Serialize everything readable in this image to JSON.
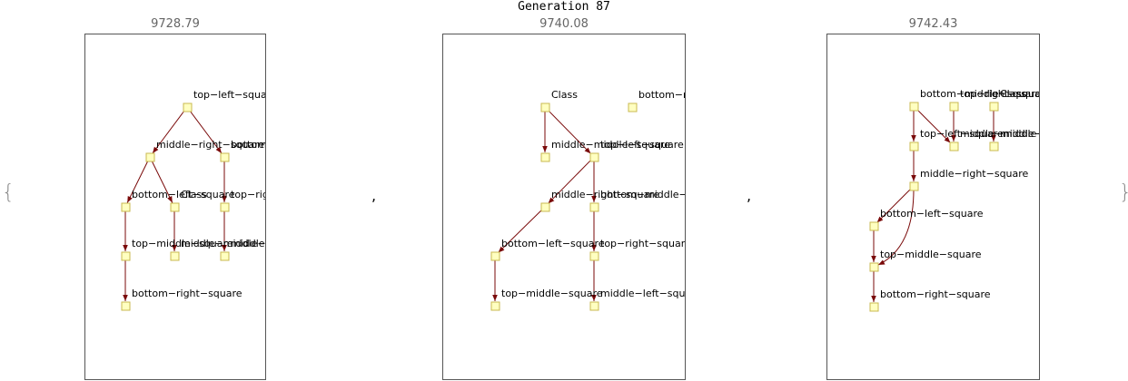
{
  "title": "Generation 87",
  "brace_open": "{",
  "brace_close": "}",
  "separators": [
    ",",
    ","
  ],
  "colors": {
    "node_fill": "#ffffc0",
    "node_stroke": "#c8b850",
    "edge": "#7a0a0a",
    "frame": "#555555"
  },
  "panels": [
    {
      "score": "9728.79",
      "nodes": [
        {
          "id": "a",
          "label": "top−left−square"
        },
        {
          "id": "b",
          "label": "middle−right−square"
        },
        {
          "id": "c",
          "label": "bottom−middle−square"
        },
        {
          "id": "d",
          "label": "bottom−left−square"
        },
        {
          "id": "e",
          "label": "Class"
        },
        {
          "id": "f",
          "label": "top−right−square"
        },
        {
          "id": "g",
          "label": "top−middle−square"
        },
        {
          "id": "h",
          "label": "middle−middle−square"
        },
        {
          "id": "i",
          "label": "middle−left−square"
        },
        {
          "id": "j",
          "label": "bottom−right−square"
        }
      ],
      "edges": [
        [
          "a",
          "b"
        ],
        [
          "a",
          "c"
        ],
        [
          "b",
          "d"
        ],
        [
          "b",
          "e"
        ],
        [
          "c",
          "f"
        ],
        [
          "d",
          "g"
        ],
        [
          "e",
          "h"
        ],
        [
          "f",
          "i"
        ],
        [
          "g",
          "j"
        ]
      ]
    },
    {
      "score": "9740.08",
      "nodes": [
        {
          "id": "a",
          "label": "Class"
        },
        {
          "id": "k",
          "label": "bottom−right−square"
        },
        {
          "id": "b",
          "label": "middle−middle−square"
        },
        {
          "id": "c",
          "label": "top−left−square"
        },
        {
          "id": "d",
          "label": "middle−right−square"
        },
        {
          "id": "e",
          "label": "bottom−middle−square"
        },
        {
          "id": "f",
          "label": "bottom−left−square"
        },
        {
          "id": "g",
          "label": "top−right−square"
        },
        {
          "id": "h",
          "label": "top−middle−square"
        },
        {
          "id": "i",
          "label": "middle−left−square"
        }
      ],
      "edges": [
        [
          "a",
          "b"
        ],
        [
          "a",
          "c"
        ],
        [
          "c",
          "d"
        ],
        [
          "c",
          "e"
        ],
        [
          "d",
          "f"
        ],
        [
          "e",
          "g"
        ],
        [
          "f",
          "h"
        ],
        [
          "g",
          "i"
        ]
      ]
    },
    {
      "score": "9742.43",
      "nodes": [
        {
          "id": "a",
          "label": "bottom−middle−square"
        },
        {
          "id": "b",
          "label": "top−right−square"
        },
        {
          "id": "c",
          "label": "Class"
        },
        {
          "id": "d",
          "label": "top−left−square"
        },
        {
          "id": "e",
          "label": "middle−middle−square"
        },
        {
          "id": "f",
          "label": "middle−left−square"
        },
        {
          "id": "g",
          "label": "middle−right−square"
        },
        {
          "id": "h",
          "label": "bottom−left−square"
        },
        {
          "id": "i",
          "label": "top−middle−square"
        },
        {
          "id": "j",
          "label": "bottom−right−square"
        }
      ],
      "edges": [
        [
          "a",
          "d"
        ],
        [
          "a",
          "e"
        ],
        [
          "b",
          "e"
        ],
        [
          "c",
          "f"
        ],
        [
          "d",
          "g"
        ],
        [
          "g",
          "h"
        ],
        [
          "g",
          "i"
        ],
        [
          "h",
          "i"
        ],
        [
          "i",
          "j"
        ]
      ]
    }
  ]
}
